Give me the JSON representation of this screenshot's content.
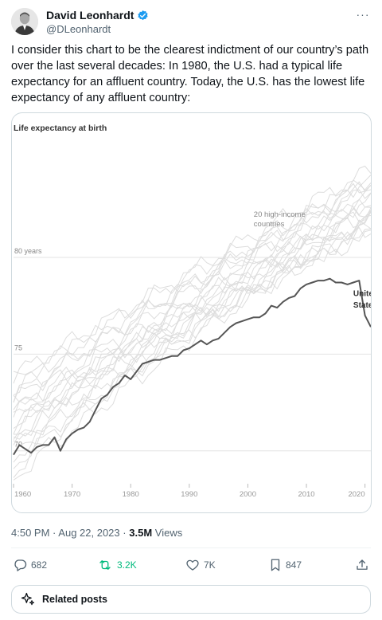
{
  "author": {
    "display_name": "David Leonhardt",
    "handle": "@DLeonhardt",
    "verified": true,
    "avatar_icon": "person-portrait-icon",
    "verified_color": "#1d9bf0"
  },
  "tweet": {
    "text": "I consider this chart to be the clearest indictment of our country’s path over the last several decades: In 1980, the U.S. had a typical life expectancy for an affluent country. Today, the U.S. has the lowest life expectancy of any affluent country:"
  },
  "chart_data": {
    "type": "line",
    "title": "Life expectancy at birth",
    "xlim": [
      1960,
      2021
    ],
    "ylim": [
      68.3,
      86.3
    ],
    "x_ticks": [
      "1960",
      "1970",
      "1980",
      "1990",
      "2000",
      "2010",
      "2020"
    ],
    "y_ticks": [
      {
        "value": 80,
        "label": "80 years"
      },
      {
        "value": 75,
        "label": "75"
      },
      {
        "value": 70,
        "label": "70"
      }
    ],
    "annotations": [
      {
        "text": "20 high-income",
        "x": 2001,
        "y": 82.1
      },
      {
        "text": "countries",
        "x": 2001,
        "y": 81.6
      },
      {
        "text": "United",
        "x": 2018,
        "y": 78.0
      },
      {
        "text": "States",
        "x": 2018,
        "y": 77.4
      }
    ],
    "highlight_color": "#555555",
    "comparison_color": "#dddddd",
    "united_states": {
      "x": [
        1960,
        1961,
        1962,
        1963,
        1964,
        1965,
        1966,
        1967,
        1968,
        1969,
        1970,
        1971,
        1972,
        1973,
        1974,
        1975,
        1976,
        1977,
        1978,
        1979,
        1980,
        1981,
        1982,
        1983,
        1984,
        1985,
        1986,
        1987,
        1988,
        1989,
        1990,
        1991,
        1992,
        1993,
        1994,
        1995,
        1996,
        1997,
        1998,
        1999,
        2000,
        2001,
        2002,
        2003,
        2004,
        2005,
        2006,
        2007,
        2008,
        2009,
        2010,
        2011,
        2012,
        2013,
        2014,
        2015,
        2016,
        2017,
        2018,
        2019,
        2020,
        2021
      ],
      "y": [
        69.8,
        70.3,
        70.1,
        69.9,
        70.2,
        70.3,
        70.3,
        70.7,
        70.0,
        70.6,
        70.9,
        71.1,
        71.2,
        71.5,
        72.1,
        72.7,
        72.9,
        73.3,
        73.5,
        73.9,
        73.7,
        74.1,
        74.5,
        74.6,
        74.7,
        74.7,
        74.8,
        74.9,
        74.9,
        75.2,
        75.3,
        75.5,
        75.7,
        75.5,
        75.7,
        75.8,
        76.1,
        76.4,
        76.6,
        76.7,
        76.8,
        76.9,
        76.9,
        77.1,
        77.5,
        77.4,
        77.7,
        77.9,
        78.0,
        78.4,
        78.6,
        78.7,
        78.8,
        78.8,
        78.9,
        78.7,
        78.7,
        78.6,
        78.7,
        78.8,
        77.0,
        76.4
      ]
    },
    "comparison_countries": [
      {
        "start": 73.2,
        "end": 84.5,
        "phase": 0.0
      },
      {
        "start": 72.8,
        "end": 83.5,
        "phase": 1.3
      },
      {
        "start": 71.9,
        "end": 83.9,
        "phase": 2.1
      },
      {
        "start": 71.3,
        "end": 82.8,
        "phase": 0.7
      },
      {
        "start": 72.4,
        "end": 82.3,
        "phase": 3.4
      },
      {
        "start": 70.8,
        "end": 83.1,
        "phase": 4.2
      },
      {
        "start": 70.2,
        "end": 82.6,
        "phase": 1.9
      },
      {
        "start": 69.7,
        "end": 81.9,
        "phase": 5.1
      },
      {
        "start": 73.6,
        "end": 82.9,
        "phase": 2.7
      },
      {
        "start": 71.0,
        "end": 81.7,
        "phase": 0.4
      },
      {
        "start": 70.5,
        "end": 84.2,
        "phase": 3.9
      },
      {
        "start": 69.3,
        "end": 82.1,
        "phase": 4.8
      },
      {
        "start": 72.1,
        "end": 81.4,
        "phase": 1.1
      },
      {
        "start": 68.9,
        "end": 83.3,
        "phase": 5.6
      },
      {
        "start": 71.6,
        "end": 82.5,
        "phase": 2.4
      },
      {
        "start": 70.0,
        "end": 81.6,
        "phase": 3.1
      },
      {
        "start": 73.9,
        "end": 83.7,
        "phase": 0.9
      },
      {
        "start": 68.6,
        "end": 82.0,
        "phase": 4.5
      },
      {
        "start": 72.6,
        "end": 84.0,
        "phase": 1.6
      },
      {
        "start": 71.4,
        "end": 81.2,
        "phase": 5.9
      }
    ]
  },
  "meta": {
    "time": "4:50 PM",
    "sep1": "·",
    "date": "Aug 22, 2023",
    "sep2": "·",
    "views_count": "3.5M",
    "views_label": "Views"
  },
  "actions": {
    "reply_count": "682",
    "repost_count": "3.2K",
    "like_count": "7K",
    "bookmark_count": "847",
    "reply_icon": "reply-bubble-icon",
    "repost_icon": "repost-arrows-icon",
    "like_icon": "heart-icon",
    "bookmark_icon": "bookmark-icon",
    "share_icon": "share-upload-icon",
    "repost_color": "#00ba7c"
  },
  "related": {
    "label": "Related posts",
    "icon": "sparkle-icon"
  }
}
